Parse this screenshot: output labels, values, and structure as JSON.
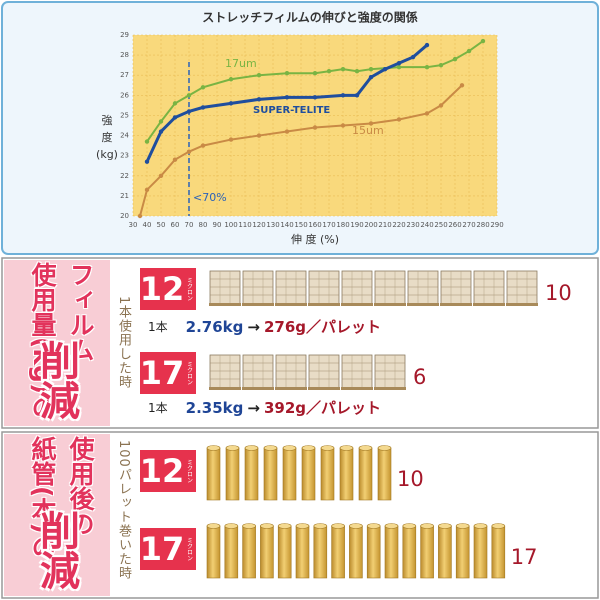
{
  "chart_data": {
    "type": "line",
    "title": "ストレッチフィルムの伸びと強度の関係",
    "xlabel": "伸 度 (%)",
    "ylabel": "強 度 (kg)",
    "xlim": [
      30,
      290
    ],
    "ylim": [
      20,
      29
    ],
    "xticks": [
      30,
      40,
      50,
      60,
      70,
      80,
      90,
      100,
      110,
      120,
      130,
      140,
      150,
      160,
      170,
      180,
      190,
      200,
      210,
      220,
      230,
      240,
      250,
      260,
      270,
      280,
      290
    ],
    "yticks": [
      20,
      21,
      22,
      23,
      24,
      25,
      26,
      27,
      28,
      29
    ],
    "grid": true,
    "series": [
      {
        "name": "17um",
        "color": "#79b443",
        "x": [
          40,
          50,
          60,
          70,
          80,
          100,
          120,
          140,
          160,
          170,
          180,
          190,
          200,
          220,
          240,
          250,
          260,
          270,
          280
        ],
        "values": [
          23.7,
          24.7,
          25.6,
          26,
          26.4,
          26.8,
          27,
          27.1,
          27.1,
          27.2,
          27.3,
          27.2,
          27.3,
          27.4,
          27.4,
          27.5,
          27.8,
          28.2,
          28.7
        ]
      },
      {
        "name": "SUPER-TELITE",
        "color": "#1f4e9e",
        "x": [
          40,
          50,
          60,
          70,
          80,
          100,
          120,
          140,
          160,
          180,
          190,
          200,
          210,
          220,
          230,
          240
        ],
        "values": [
          22.7,
          24.2,
          24.9,
          25.2,
          25.4,
          25.6,
          25.8,
          25.9,
          25.9,
          26,
          26,
          26.9,
          27.3,
          27.6,
          27.9,
          28.5
        ]
      },
      {
        "name": "15um",
        "color": "#c98a45",
        "x": [
          35,
          40,
          50,
          60,
          70,
          80,
          100,
          120,
          140,
          160,
          180,
          200,
          220,
          240,
          250,
          265
        ],
        "values": [
          20,
          21.3,
          22,
          22.8,
          23.2,
          23.5,
          23.8,
          24,
          24.2,
          24.4,
          24.5,
          24.6,
          24.8,
          25.1,
          25.5,
          26.5
        ]
      }
    ],
    "annotations": [
      {
        "text": "<70%",
        "x": 70
      }
    ]
  },
  "panels": [
    {
      "title_columns": [
        "フィルム",
        "使用量(kg)の"
      ],
      "title_big": "削減",
      "condition": "1本使用した時",
      "rows": [
        {
          "micron": "12",
          "unit": "ミクロン",
          "count": 10,
          "note": [
            "1本",
            "2.76kg",
            "→",
            "276g／パレット"
          ]
        },
        {
          "micron": "17",
          "unit": "ミクロン",
          "count": 6,
          "note": [
            "1本",
            "2.35kg",
            "→",
            "392g／パレット"
          ]
        }
      ]
    },
    {
      "title_columns": [
        "使用後の",
        "紙管(本)の"
      ],
      "title_big": "削減",
      "condition": "100パレット巻いた時",
      "rows": [
        {
          "micron": "12",
          "unit": "ミクロン",
          "count": 10
        },
        {
          "micron": "17",
          "unit": "ミクロン",
          "count": 17
        }
      ]
    }
  ]
}
